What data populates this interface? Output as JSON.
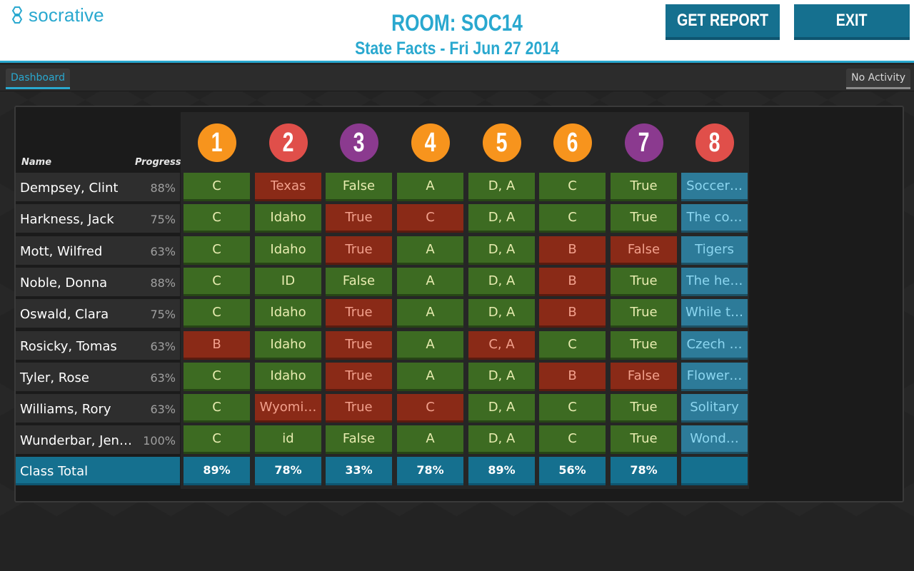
{
  "header": {
    "logo_text": "socrative",
    "room": "ROOM: SOC14",
    "subtitle": "State Facts - Fri Jun 27 2014",
    "get_report_label": "GET REPORT",
    "exit_label": "EXIT"
  },
  "subbar": {
    "dashboard_tab": "Dashboard",
    "activity_status": "No Activity"
  },
  "table": {
    "name_header": "Name",
    "progress_header": "Progress",
    "questions": [
      {
        "num": "1",
        "color": "#f7941d"
      },
      {
        "num": "2",
        "color": "#e04f4a"
      },
      {
        "num": "3",
        "color": "#8b3a8f"
      },
      {
        "num": "4",
        "color": "#f7941d"
      },
      {
        "num": "5",
        "color": "#f7941d"
      },
      {
        "num": "6",
        "color": "#f7941d"
      },
      {
        "num": "7",
        "color": "#8b3a8f"
      },
      {
        "num": "8",
        "color": "#e04f4a"
      }
    ],
    "rows": [
      {
        "name": "Dempsey, Clint",
        "progress": "88%",
        "answers": [
          [
            "C",
            "g"
          ],
          [
            "Texas",
            "r"
          ],
          [
            "False",
            "g"
          ],
          [
            "A",
            "g"
          ],
          [
            "D, A",
            "g"
          ],
          [
            "C",
            "g"
          ],
          [
            "True",
            "g"
          ],
          [
            "Soccer…",
            "b"
          ]
        ]
      },
      {
        "name": "Harkness, Jack",
        "progress": "75%",
        "answers": [
          [
            "C",
            "g"
          ],
          [
            "Idaho",
            "g"
          ],
          [
            "True",
            "r"
          ],
          [
            "C",
            "r"
          ],
          [
            "D, A",
            "g"
          ],
          [
            "C",
            "g"
          ],
          [
            "True",
            "g"
          ],
          [
            "The co…",
            "b"
          ]
        ]
      },
      {
        "name": "Mott, Wilfred",
        "progress": "63%",
        "answers": [
          [
            "C",
            "g"
          ],
          [
            "Idaho",
            "g"
          ],
          [
            "True",
            "r"
          ],
          [
            "A",
            "g"
          ],
          [
            "D, A",
            "g"
          ],
          [
            "B",
            "r"
          ],
          [
            "False",
            "r"
          ],
          [
            "Tigers",
            "b"
          ]
        ]
      },
      {
        "name": "Noble, Donna",
        "progress": "88%",
        "answers": [
          [
            "C",
            "g"
          ],
          [
            "ID",
            "g"
          ],
          [
            "False",
            "g"
          ],
          [
            "A",
            "g"
          ],
          [
            "D, A",
            "g"
          ],
          [
            "B",
            "r"
          ],
          [
            "True",
            "g"
          ],
          [
            "The he…",
            "b"
          ]
        ]
      },
      {
        "name": "Oswald, Clara",
        "progress": "75%",
        "answers": [
          [
            "C",
            "g"
          ],
          [
            "Idaho",
            "g"
          ],
          [
            "True",
            "r"
          ],
          [
            "A",
            "g"
          ],
          [
            "D, A",
            "g"
          ],
          [
            "B",
            "r"
          ],
          [
            "True",
            "g"
          ],
          [
            "While t…",
            "b"
          ]
        ]
      },
      {
        "name": "Rosicky, Tomas",
        "progress": "63%",
        "answers": [
          [
            "B",
            "r"
          ],
          [
            "Idaho",
            "g"
          ],
          [
            "True",
            "r"
          ],
          [
            "A",
            "g"
          ],
          [
            "C, A",
            "r"
          ],
          [
            "C",
            "g"
          ],
          [
            "True",
            "g"
          ],
          [
            "Czech …",
            "b"
          ]
        ]
      },
      {
        "name": "Tyler, Rose",
        "progress": "63%",
        "answers": [
          [
            "C",
            "g"
          ],
          [
            "Idaho",
            "g"
          ],
          [
            "True",
            "r"
          ],
          [
            "A",
            "g"
          ],
          [
            "D, A",
            "g"
          ],
          [
            "B",
            "r"
          ],
          [
            "False",
            "r"
          ],
          [
            "Flower…",
            "b"
          ]
        ]
      },
      {
        "name": "Williams, Rory",
        "progress": "63%",
        "answers": [
          [
            "C",
            "g"
          ],
          [
            "Wyomi…",
            "r"
          ],
          [
            "True",
            "r"
          ],
          [
            "C",
            "r"
          ],
          [
            "D, A",
            "g"
          ],
          [
            "C",
            "g"
          ],
          [
            "True",
            "g"
          ],
          [
            "Solitary",
            "b"
          ]
        ]
      },
      {
        "name": "Wunderbar, Jen…",
        "progress": "100%",
        "answers": [
          [
            "C",
            "g"
          ],
          [
            "id",
            "g"
          ],
          [
            "False",
            "g"
          ],
          [
            "A",
            "g"
          ],
          [
            "D, A",
            "g"
          ],
          [
            "C",
            "g"
          ],
          [
            "True",
            "g"
          ],
          [
            "Wond…",
            "b"
          ]
        ]
      }
    ],
    "total_label": "Class Total",
    "totals": [
      "89%",
      "78%",
      "33%",
      "78%",
      "89%",
      "56%",
      "78%",
      ""
    ]
  }
}
